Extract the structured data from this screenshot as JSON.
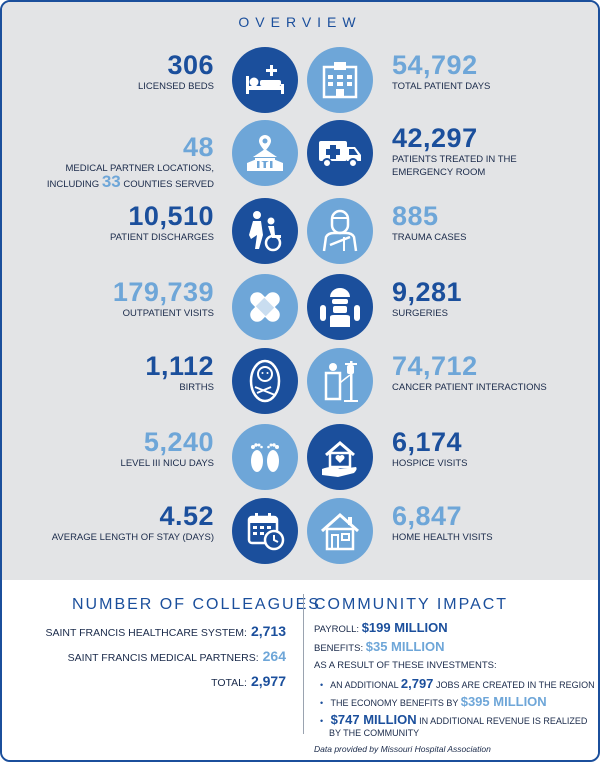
{
  "overview_title": "OVERVIEW",
  "colors": {
    "dark": "#1b4f9c",
    "light": "#6ea6d8"
  },
  "rows": [
    {
      "left": {
        "value": "306",
        "label": "LICENSED BEDS",
        "icon": "hospital-bed-icon"
      },
      "right": {
        "value": "54,792",
        "label": "TOTAL PATIENT DAYS",
        "icon": "hospital-building-icon"
      }
    },
    {
      "left": {
        "value": "48",
        "label": "MEDICAL PARTNER LOCATIONS,",
        "label2_prefix": "INCLUDING",
        "label2_num": "33",
        "label2_suffix": "COUNTIES SERVED",
        "icon": "map-location-icon"
      },
      "right": {
        "value": "42,297",
        "label": "PATIENTS TREATED IN THE",
        "label2": "EMERGENCY ROOM",
        "icon": "ambulance-icon"
      }
    },
    {
      "left": {
        "value": "10,510",
        "label": "PATIENT DISCHARGES",
        "icon": "wheelchair-icon"
      },
      "right": {
        "value": "885",
        "label": "TRAUMA CASES",
        "icon": "injured-patient-icon"
      }
    },
    {
      "left": {
        "value": "179,739",
        "label": "OUTPATIENT VISITS",
        "icon": "bandage-icon"
      },
      "right": {
        "value": "9,281",
        "label": "SURGERIES",
        "icon": "surgeon-icon"
      }
    },
    {
      "left": {
        "value": "1,112",
        "label": "BIRTHS",
        "icon": "baby-icon"
      },
      "right": {
        "value": "74,712",
        "label": "CANCER PATIENT INTERACTIONS",
        "icon": "iv-patient-icon"
      }
    },
    {
      "left": {
        "value": "5,240",
        "label": "LEVEL III NICU DAYS",
        "icon": "baby-feet-icon"
      },
      "right": {
        "value": "6,174",
        "label": "HOSPICE VISITS",
        "icon": "hospice-care-icon"
      }
    },
    {
      "left": {
        "value": "4.52",
        "label": "AVERAGE LENGTH OF STAY (DAYS)",
        "icon": "calendar-clock-icon"
      },
      "right": {
        "value": "6,847",
        "label": "HOME HEALTH VISITS",
        "icon": "house-icon"
      }
    }
  ],
  "colleagues": {
    "title": "NUMBER OF COLLEAGUES",
    "items": [
      {
        "label": "SAINT FRANCIS HEALTHCARE SYSTEM:",
        "value": "2,713"
      },
      {
        "label": "SAINT FRANCIS MEDICAL PARTNERS:",
        "value": "264"
      },
      {
        "label": "TOTAL:",
        "value": "2,977"
      }
    ]
  },
  "community": {
    "title": "COMMUNITY IMPACT",
    "payroll_label": "PAYROLL:",
    "payroll_value": "$199 MILLION",
    "benefits_label": "BENEFITS:",
    "benefits_value": "$35 MILLION",
    "result_text": "AS A RESULT OF THESE INVESTMENTS:",
    "bullet1_prefix": "AN ADDITIONAL",
    "bullet1_value": "2,797",
    "bullet1_suffix": "JOBS ARE CREATED IN THE REGION",
    "bullet2_prefix": "THE ECONOMY BENEFITS BY",
    "bullet2_value": "$395 MILLION",
    "bullet3_value": "$747 MILLION",
    "bullet3_suffix": "IN ADDITIONAL REVENUE IS REALIZED",
    "bullet3_line2": "BY THE COMMUNITY"
  },
  "note": "Data provided by Missouri Hospital Association"
}
